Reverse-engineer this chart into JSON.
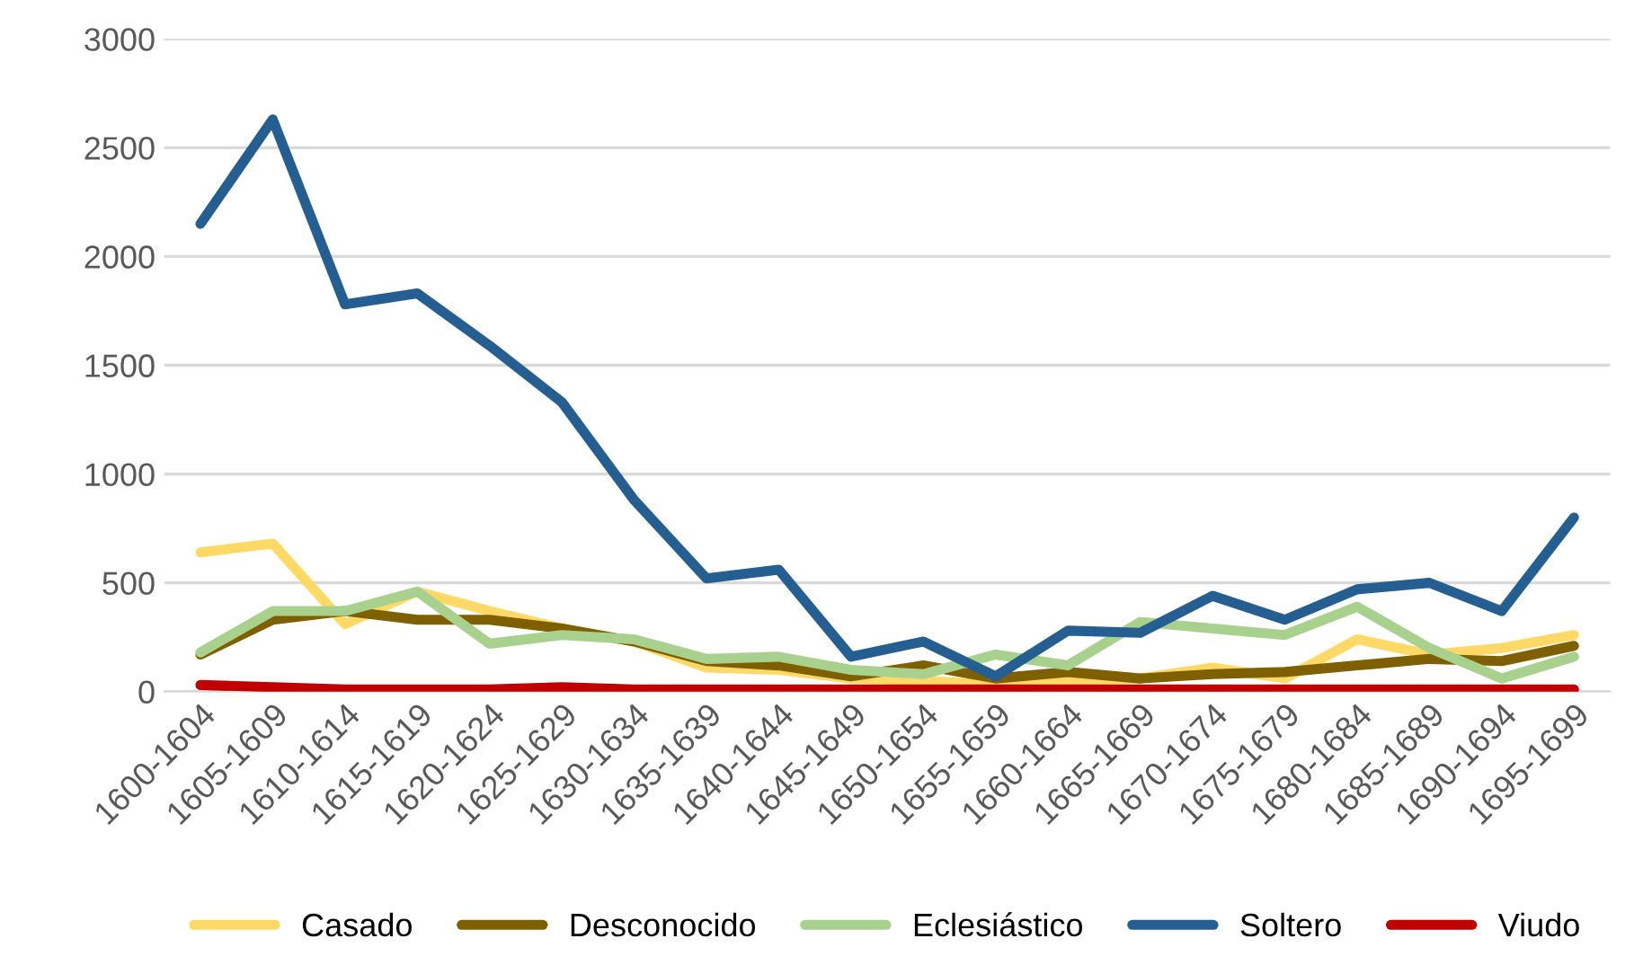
{
  "chart_data": {
    "type": "line",
    "categories": [
      "1600-1604",
      "1605-1609",
      "1610-1614",
      "1615-1619",
      "1620-1624",
      "1625-1629",
      "1630-1634",
      "1635-1639",
      "1640-1644",
      "1645-1649",
      "1650-1654",
      "1655-1659",
      "1660-1664",
      "1665-1669",
      "1670-1674",
      "1675-1679",
      "1680-1684",
      "1685-1689",
      "1690-1694",
      "1695-1699"
    ],
    "series": [
      {
        "name": "Casado",
        "color": "#ffd966",
        "values": [
          640,
          680,
          310,
          460,
          370,
          290,
          230,
          110,
          100,
          60,
          50,
          30,
          50,
          60,
          110,
          60,
          240,
          170,
          200,
          260
        ]
      },
      {
        "name": "Desconocido",
        "color": "#7f6000",
        "values": [
          170,
          330,
          370,
          330,
          330,
          290,
          230,
          140,
          120,
          70,
          120,
          60,
          90,
          60,
          80,
          90,
          120,
          150,
          140,
          210
        ]
      },
      {
        "name": "Eclesiástico",
        "color": "#a9d18e",
        "values": [
          180,
          370,
          370,
          460,
          220,
          260,
          240,
          150,
          160,
          100,
          80,
          170,
          120,
          320,
          290,
          260,
          390,
          200,
          60,
          160
        ]
      },
      {
        "name": "Soltero",
        "color": "#255e91",
        "values": [
          2150,
          2630,
          1780,
          1830,
          1590,
          1330,
          880,
          520,
          560,
          160,
          230,
          70,
          280,
          270,
          440,
          330,
          470,
          500,
          370,
          800
        ]
      },
      {
        "name": "Viudo",
        "color": "#c00000",
        "values": [
          30,
          20,
          10,
          10,
          10,
          20,
          10,
          10,
          10,
          10,
          10,
          10,
          10,
          10,
          10,
          10,
          10,
          10,
          10,
          10
        ]
      }
    ],
    "ylim": [
      0,
      3000
    ],
    "yticks": [
      0,
      500,
      1000,
      1500,
      2000,
      2500,
      3000
    ],
    "grid": "y",
    "legend": "bottom",
    "marker": "none",
    "line_style": "solid"
  }
}
